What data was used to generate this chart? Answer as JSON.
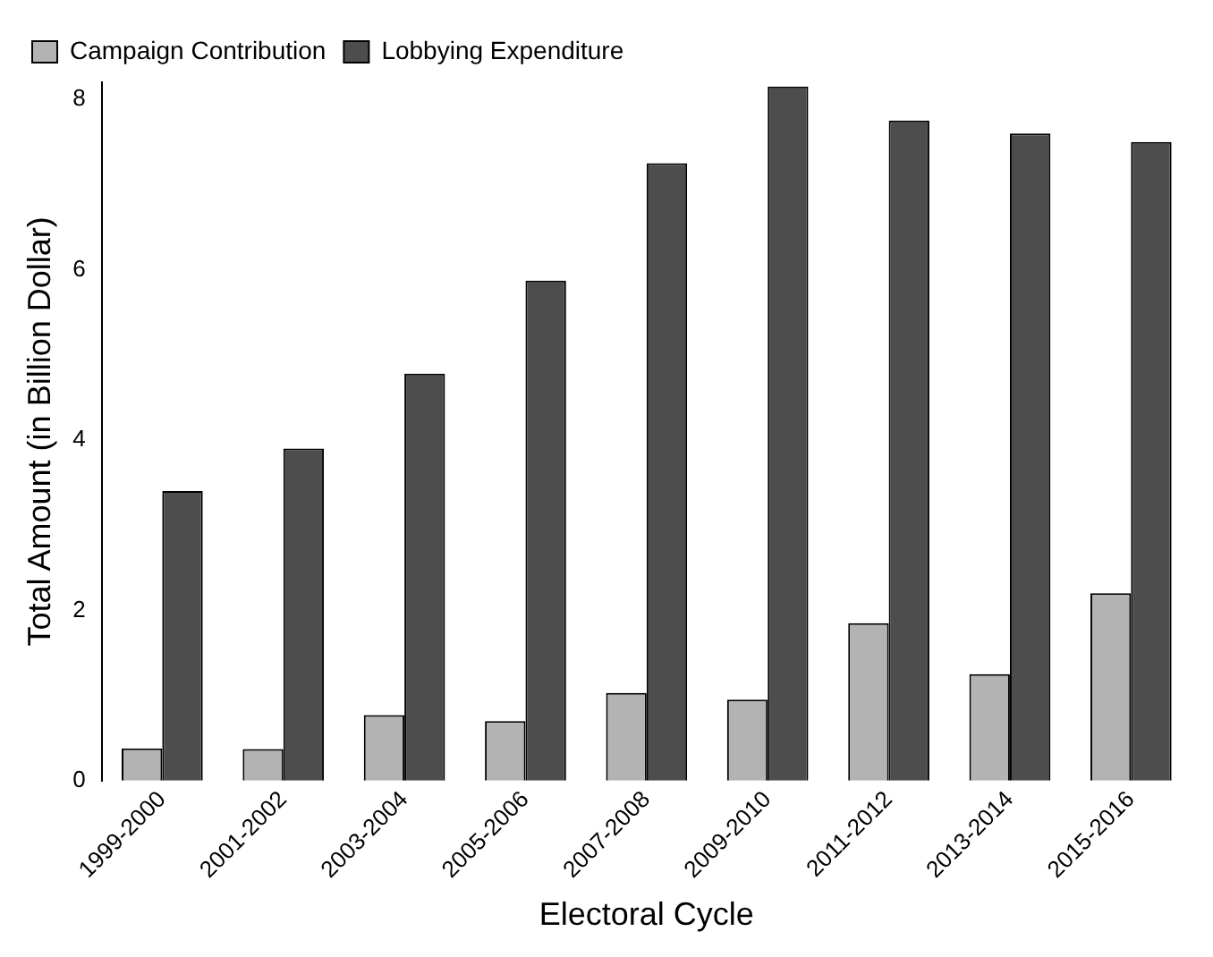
{
  "chart_data": {
    "type": "bar",
    "xlabel": "Electoral Cycle",
    "ylabel": "Total Amount (in Billion Dollar)",
    "categories": [
      "1999-2000",
      "2001-2002",
      "2003-2004",
      "2005-2006",
      "2007-2008",
      "2009-2010",
      "2011-2012",
      "2013-2014",
      "2015-2016"
    ],
    "series": [
      {
        "name": "Campaign Contribution",
        "color": "#b3b3b3",
        "values": [
          0.38,
          0.37,
          0.77,
          0.7,
          1.03,
          0.95,
          1.85,
          1.25,
          2.2
        ]
      },
      {
        "name": "Lobbying Expenditure",
        "color": "#4d4d4d",
        "values": [
          3.4,
          3.9,
          4.78,
          5.87,
          7.25,
          8.15,
          7.75,
          7.6,
          7.5
        ]
      }
    ],
    "ylim": [
      0,
      8.2
    ],
    "yticks": [
      0,
      2,
      4,
      6,
      8
    ],
    "grid": false,
    "legend": "top left"
  }
}
